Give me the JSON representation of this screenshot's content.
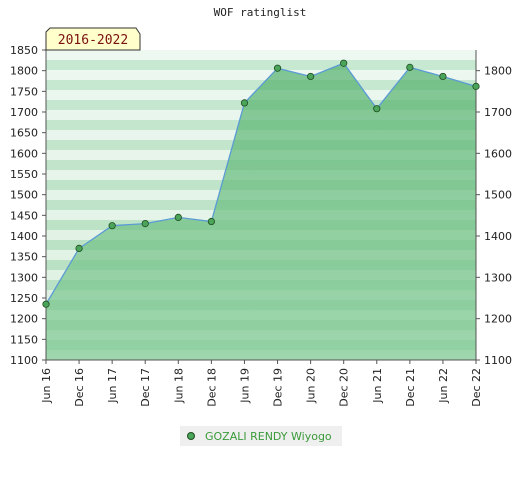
{
  "chart_data": {
    "type": "area",
    "title": "WOF ratinglist",
    "badge": "2016-2022",
    "categories": [
      "Jun 16",
      "Dec 16",
      "Jun 17",
      "Dec 17",
      "Jun 18",
      "Dec 18",
      "Jun 19",
      "Dec 19",
      "Jun 20",
      "Dec 20",
      "Jun 21",
      "Dec 21",
      "Jun 22",
      "Dec 22"
    ],
    "series": [
      {
        "name": "GOZALI RENDY Wiyogo",
        "values": [
          1235,
          1370,
          1425,
          1430,
          1445,
          1435,
          1722,
          1806,
          1786,
          1818,
          1708,
          1808,
          1786,
          1762
        ]
      }
    ],
    "ylim": [
      1100,
      1850
    ],
    "left_ticks": [
      1100,
      1150,
      1200,
      1250,
      1300,
      1350,
      1400,
      1450,
      1500,
      1550,
      1600,
      1650,
      1700,
      1750,
      1800,
      1850
    ],
    "right_ticks": [
      1100,
      1200,
      1300,
      1400,
      1500,
      1600,
      1700,
      1800
    ],
    "colors": {
      "fill": "#7cc38f",
      "line": "#5b9bd5",
      "marker": "#4aa45a",
      "badge_bg": "#ffffcc"
    },
    "legend": "bottom-center",
    "grid": true
  }
}
